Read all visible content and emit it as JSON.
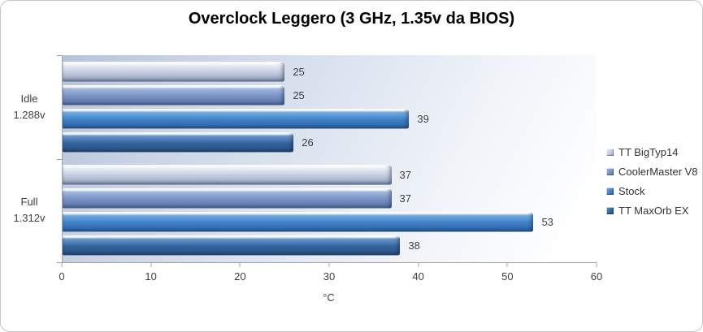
{
  "chart_data": {
    "type": "bar",
    "orientation": "horizontal",
    "title": "Overclock Leggero (3 GHz, 1.35v da BIOS)",
    "xlabel": "°C",
    "xlim": [
      0,
      60
    ],
    "x_ticks": [
      0,
      10,
      20,
      30,
      40,
      50,
      60
    ],
    "grid": false,
    "legend_position": "right",
    "categories": [
      {
        "label": "Idle",
        "sub": "1.288v"
      },
      {
        "label": "Full",
        "sub": "1.312v"
      }
    ],
    "series": [
      {
        "name": "TT BigTyp14",
        "values": [
          25,
          37
        ],
        "color": "#c4cce0",
        "color_light": "#e9edf6",
        "color_dark": "#8f9cba"
      },
      {
        "name": "CoolerMaster V8",
        "values": [
          25,
          37
        ],
        "color": "#7a92c4",
        "color_light": "#a3b8e0",
        "color_dark": "#5671a6"
      },
      {
        "name": "Stock",
        "values": [
          39,
          53
        ],
        "color": "#3f81ca",
        "color_light": "#77ace0",
        "color_dark": "#2b62a4"
      },
      {
        "name": "TT MaxOrb EX",
        "values": [
          26,
          38
        ],
        "color": "#34659f",
        "color_light": "#6d97cc",
        "color_dark": "#264f7e"
      }
    ]
  }
}
